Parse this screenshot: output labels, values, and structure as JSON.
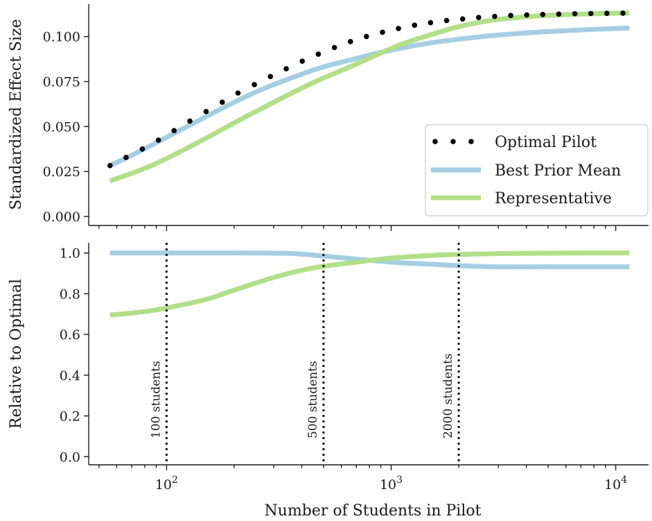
{
  "chart_data": [
    {
      "type": "line",
      "panel": "top",
      "xscale": "log",
      "xlim": [
        45,
        14000
      ],
      "ylim": [
        -0.005,
        0.118
      ],
      "ylabel": "Standardized Effect Size",
      "yticks": [
        0.0,
        0.025,
        0.05,
        0.075,
        0.1
      ],
      "ytick_labels": [
        "0.000",
        "0.025",
        "0.050",
        "0.075",
        "0.100"
      ],
      "legend_position": "lower-right",
      "series": [
        {
          "name": "Optimal Pilot",
          "style": "dotted",
          "color": "#000000",
          "x": [
            56,
            66,
            78,
            92,
            108,
            127,
            150,
            177,
            208,
            246,
            290,
            341,
            402,
            474,
            559,
            659,
            776,
            915,
            1078,
            1271,
            1498,
            1766,
            2081,
            2453,
            2891,
            3408,
            4016,
            4734,
            5579,
            6576,
            7751,
            9135,
            10767
          ],
          "y": [
            0.0283,
            0.0328,
            0.0375,
            0.0424,
            0.0477,
            0.053,
            0.0583,
            0.0635,
            0.0686,
            0.0733,
            0.0778,
            0.0821,
            0.0863,
            0.0902,
            0.0939,
            0.0972,
            0.1,
            0.1024,
            0.1045,
            0.1063,
            0.1077,
            0.1089,
            0.1098,
            0.1106,
            0.1112,
            0.1117,
            0.112,
            0.1123,
            0.1125,
            0.1127,
            0.1128,
            0.1129,
            0.113
          ]
        },
        {
          "name": "Best Prior Mean",
          "style": "solid",
          "color": "#a6cee3",
          "x": [
            56,
            70,
            90,
            115,
            150,
            200,
            270,
            360,
            480,
            650,
            850,
            1100,
            1500,
            2000,
            2800,
            4000,
            5500,
            8000,
            11500
          ],
          "y": [
            0.0283,
            0.034,
            0.041,
            0.048,
            0.0555,
            0.0635,
            0.071,
            0.077,
            0.0825,
            0.0868,
            0.0905,
            0.0935,
            0.0965,
            0.0985,
            0.1005,
            0.102,
            0.103,
            0.104,
            0.1047
          ]
        },
        {
          "name": "Representative",
          "style": "solid",
          "color": "#b2df8a",
          "x": [
            56,
            70,
            90,
            115,
            150,
            200,
            270,
            360,
            480,
            650,
            850,
            1100,
            1500,
            2000,
            2800,
            4000,
            5500,
            8000,
            11500
          ],
          "y": [
            0.0198,
            0.024,
            0.0295,
            0.036,
            0.0435,
            0.052,
            0.0605,
            0.0685,
            0.076,
            0.083,
            0.0895,
            0.0955,
            0.101,
            0.1055,
            0.109,
            0.111,
            0.112,
            0.1127,
            0.1131
          ]
        }
      ]
    },
    {
      "type": "line",
      "panel": "bottom",
      "xscale": "log",
      "xlim": [
        45,
        14000
      ],
      "ylim": [
        -0.04,
        1.05
      ],
      "xlabel": "Number of Students in Pilot",
      "ylabel": "Relative to Optimal",
      "yticks": [
        0.0,
        0.2,
        0.4,
        0.6,
        0.8,
        1.0
      ],
      "ytick_labels": [
        "0.0",
        "0.2",
        "0.4",
        "0.6",
        "0.8",
        "1.0"
      ],
      "xticks": [
        100,
        1000,
        10000
      ],
      "xtick_labels": [
        {
          "base": "10",
          "exp": "2"
        },
        {
          "base": "10",
          "exp": "3"
        },
        {
          "base": "10",
          "exp": "4"
        }
      ],
      "series": [
        {
          "name": "Best Prior Mean",
          "style": "solid",
          "color": "#a6cee3",
          "x": [
            56,
            100,
            200,
            350,
            500,
            700,
            1000,
            1500,
            2000,
            3000,
            5000,
            8000,
            11500
          ],
          "y": [
            1.0,
            1.0,
            1.0,
            0.998,
            0.985,
            0.97,
            0.955,
            0.945,
            0.938,
            0.932,
            0.932,
            0.932,
            0.932
          ]
        },
        {
          "name": "Representative",
          "style": "solid",
          "color": "#b2df8a",
          "x": [
            56,
            80,
            100,
            150,
            200,
            300,
            400,
            500,
            700,
            1000,
            1500,
            2000,
            3000,
            5000,
            8000,
            11500
          ],
          "y": [
            0.695,
            0.712,
            0.73,
            0.772,
            0.818,
            0.88,
            0.915,
            0.935,
            0.955,
            0.975,
            0.988,
            0.993,
            0.997,
            0.999,
            1.0,
            1.0
          ]
        }
      ],
      "vlines": [
        {
          "x": 100,
          "label": "100 students"
        },
        {
          "x": 500,
          "label": "500 students"
        },
        {
          "x": 2000,
          "label": "2000 students"
        }
      ]
    }
  ]
}
